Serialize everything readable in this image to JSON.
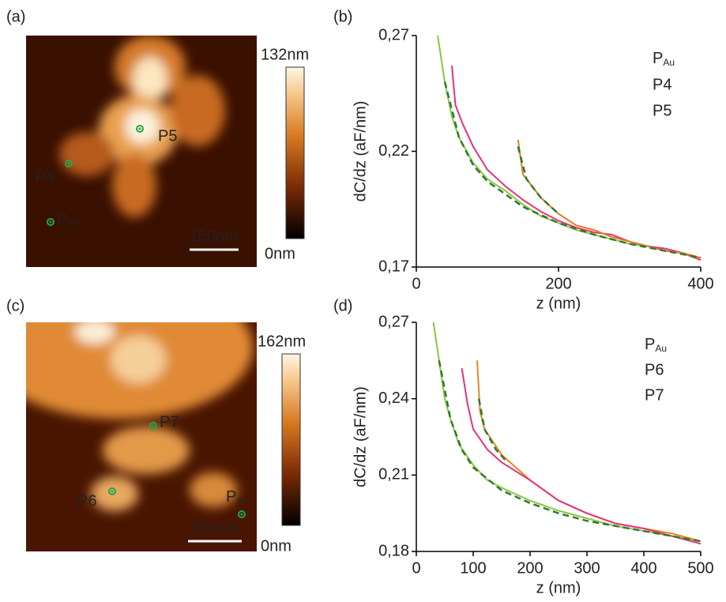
{
  "panels": [
    {
      "label": "(a)",
      "colorbar_max": "132nm",
      "colorbar_min": "0nm",
      "scale_bar": "150nm",
      "points": [
        "P5",
        "P4",
        "PAu"
      ]
    },
    {
      "label": "(b)"
    },
    {
      "label": "(c)",
      "colorbar_max": "162nm",
      "colorbar_min": "0nm",
      "scale_bar": "200nm",
      "points": [
        "P7",
        "P6",
        "PAu"
      ]
    },
    {
      "label": "(d)"
    }
  ],
  "chart_data": [
    {
      "type": "line",
      "xlabel": "z (nm)",
      "ylabel": "dC/dz (aF/nm)",
      "xlim": [
        0,
        400
      ],
      "xticks": [
        0,
        200,
        400
      ],
      "ylim": [
        0.17,
        0.27
      ],
      "yticks": [
        {
          "value": 0.17,
          "label": "0,17"
        },
        {
          "value": 0.22,
          "label": "0,22"
        },
        {
          "value": 0.27,
          "label": "0,27"
        }
      ],
      "series": [
        {
          "name": "PAu",
          "color": "#8cc63f",
          "x": [
            30,
            40,
            50,
            60,
            80,
            100,
            125,
            150,
            175,
            200,
            225,
            250,
            275,
            300,
            325,
            350,
            375,
            400
          ],
          "values": [
            0.27,
            0.25,
            0.235,
            0.226,
            0.215,
            0.208,
            0.203,
            0.197,
            0.192,
            0.189,
            0.186,
            0.184,
            0.182,
            0.18,
            0.179,
            0.177,
            0.176,
            0.174
          ]
        },
        {
          "name": "P4",
          "color": "#e8317a",
          "x": [
            50,
            55,
            65,
            80,
            100,
            125,
            150,
            175,
            200,
            225,
            250,
            275,
            300,
            325,
            350,
            375,
            400
          ],
          "values": [
            0.257,
            0.24,
            0.232,
            0.222,
            0.212,
            0.205,
            0.199,
            0.194,
            0.19,
            0.187,
            0.185,
            0.184,
            0.181,
            0.179,
            0.178,
            0.176,
            0.173
          ]
        },
        {
          "name": "P5",
          "color": "#e07b24",
          "x": [
            143,
            150,
            160,
            175,
            200,
            225,
            250,
            275,
            300,
            325,
            350,
            375,
            400
          ],
          "values": [
            0.225,
            0.21,
            0.206,
            0.2,
            0.193,
            0.188,
            0.186,
            0.183,
            0.181,
            0.179,
            0.177,
            0.176,
            0.174
          ]
        },
        {
          "color": "#2d7a2d",
          "dashed": true,
          "x": [
            40,
            60,
            80,
            100,
            150,
            200,
            250,
            300,
            350,
            400
          ],
          "values": [
            0.25,
            0.226,
            0.214,
            0.207,
            0.196,
            0.189,
            0.184,
            0.18,
            0.177,
            0.174
          ]
        },
        {
          "color": "#2d7a2d",
          "dashed": true,
          "x": [
            143,
            155,
            175,
            200
          ],
          "values": [
            0.222,
            0.208,
            0.2,
            0.193
          ]
        }
      ]
    },
    {
      "type": "line",
      "xlabel": "z (nm)",
      "ylabel": "dC/dz (aF/nm)",
      "xlim": [
        0,
        500
      ],
      "xticks": [
        0,
        100,
        200,
        300,
        400,
        500
      ],
      "ylim": [
        0.18,
        0.27
      ],
      "yticks": [
        {
          "value": 0.18,
          "label": "0,18"
        },
        {
          "value": 0.21,
          "label": "0,21"
        },
        {
          "value": 0.24,
          "label": "0,24"
        },
        {
          "value": 0.27,
          "label": "0,27"
        }
      ],
      "series": [
        {
          "name": "PAu",
          "color": "#8cc63f",
          "x": [
            30,
            40,
            50,
            60,
            75,
            100,
            125,
            150,
            200,
            250,
            300,
            350,
            400,
            450,
            500
          ],
          "values": [
            0.27,
            0.255,
            0.24,
            0.232,
            0.222,
            0.214,
            0.208,
            0.205,
            0.2,
            0.196,
            0.193,
            0.19,
            0.188,
            0.186,
            0.184
          ]
        },
        {
          "name": "P6",
          "color": "#e08a24",
          "x": [
            107,
            112,
            120,
            150,
            200,
            250,
            300,
            350,
            400,
            450,
            500
          ],
          "values": [
            0.255,
            0.235,
            0.228,
            0.218,
            0.208,
            0.2,
            0.195,
            0.191,
            0.189,
            0.187,
            0.184
          ]
        },
        {
          "name": "P7",
          "color": "#e8317a",
          "x": [
            80,
            90,
            100,
            125,
            150,
            200,
            250,
            300,
            350,
            400,
            450,
            500
          ],
          "values": [
            0.252,
            0.238,
            0.228,
            0.22,
            0.215,
            0.208,
            0.2,
            0.195,
            0.191,
            0.189,
            0.186,
            0.183
          ]
        },
        {
          "color": "#2d7a2d",
          "dashed": true,
          "x": [
            40,
            60,
            80,
            100,
            150,
            200,
            250,
            300,
            400,
            500
          ],
          "values": [
            0.255,
            0.232,
            0.22,
            0.213,
            0.204,
            0.199,
            0.195,
            0.192,
            0.188,
            0.184
          ]
        },
        {
          "color": "#2d7a2d",
          "dashed": true,
          "x": [
            110,
            120,
            140,
            160
          ],
          "values": [
            0.24,
            0.228,
            0.22,
            0.215
          ]
        }
      ]
    }
  ]
}
